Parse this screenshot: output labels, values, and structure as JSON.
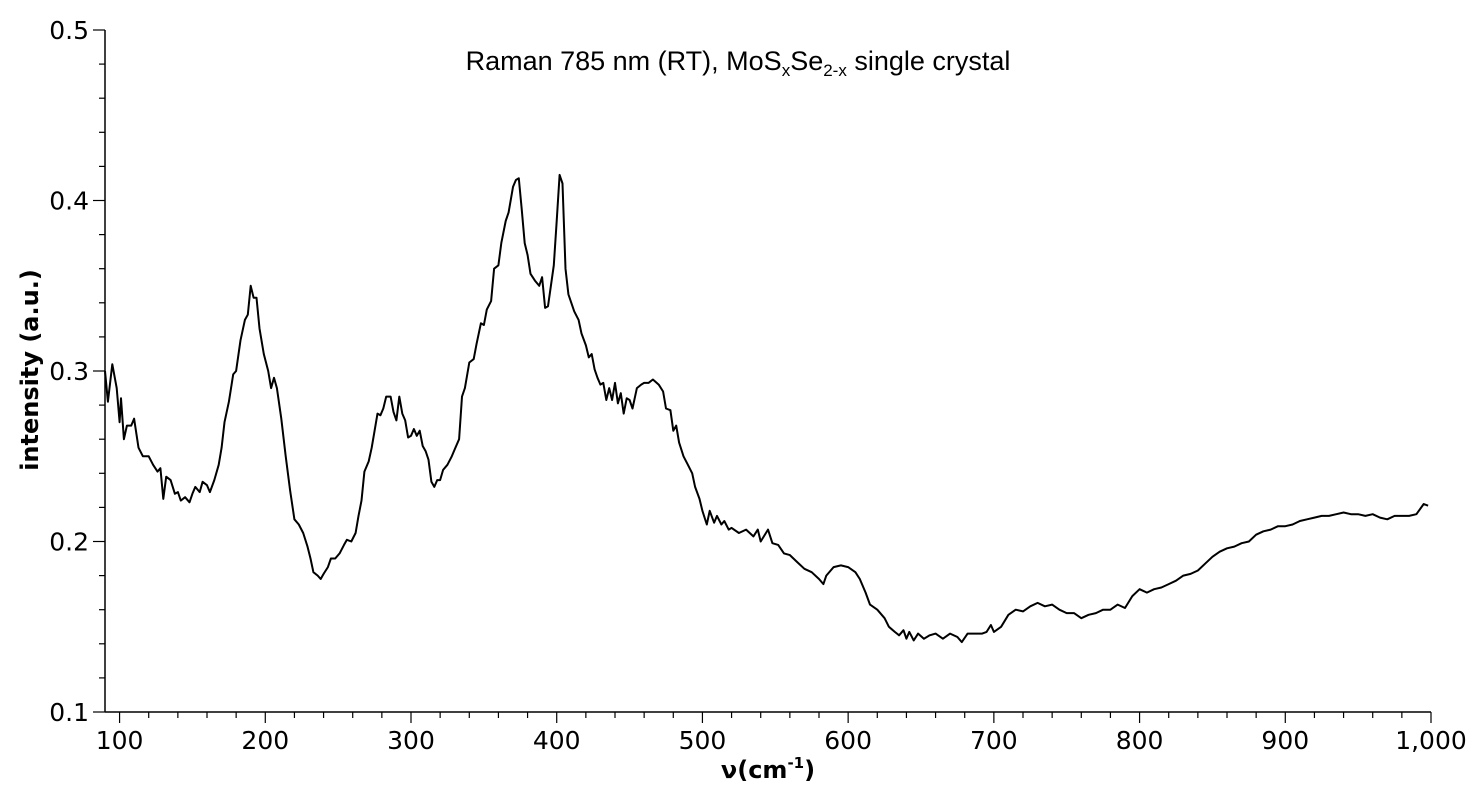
{
  "chart_data": {
    "type": "line",
    "title": "Raman 785 nm (RT), MoS",
    "title_parts": {
      "pre": "Raman 785 nm (RT), MoS",
      "sub1": "x",
      "mid": "Se",
      "sub2": "2-x",
      "post": " single crystal"
    },
    "xlabel": {
      "main": "ν(cm",
      "sup": "-1",
      "close": ")"
    },
    "ylabel": "intensity (a.u.)",
    "xlim": [
      90,
      1000
    ],
    "ylim": [
      0.1,
      0.5
    ],
    "xticks": [
      100,
      200,
      300,
      400,
      500,
      600,
      700,
      800,
      900,
      1000
    ],
    "xtick_labels": [
      "100",
      "200",
      "300",
      "400",
      "500",
      "600",
      "700",
      "800",
      "900",
      "1,000"
    ],
    "yticks": [
      0.1,
      0.2,
      0.3,
      0.4,
      0.5
    ],
    "ytick_labels": [
      "0.1",
      "0.2",
      "0.3",
      "0.4",
      "0.5"
    ],
    "grid": false,
    "line_color": "#000000",
    "series": [
      {
        "x": [
          90,
          92,
          95,
          98,
          100,
          101,
          103,
          105,
          108,
          110,
          113,
          116,
          120,
          123,
          126,
          128,
          130,
          132,
          135,
          138,
          140,
          142,
          145,
          148,
          150,
          152,
          155,
          157,
          160,
          162,
          165,
          168,
          170,
          172,
          175,
          178,
          180,
          183,
          186,
          188,
          190,
          192,
          194,
          196,
          199,
          202,
          204,
          206,
          208,
          211,
          214,
          217,
          220,
          223,
          226,
          229,
          231,
          233,
          236,
          238,
          240,
          243,
          245,
          248,
          251,
          254,
          256,
          259,
          262,
          264,
          266,
          268,
          271,
          273,
          275,
          277,
          279,
          281,
          283,
          286,
          288,
          290,
          292,
          294,
          296,
          298,
          300,
          302,
          304,
          306,
          308,
          310,
          312,
          314,
          316,
          318,
          320,
          322,
          325,
          328,
          330,
          333,
          335,
          337,
          340,
          343,
          345,
          348,
          350,
          352,
          355,
          357,
          360,
          362,
          365,
          367,
          370,
          372,
          374,
          376,
          378,
          380,
          382,
          385,
          388,
          390,
          392,
          394,
          396,
          398,
          400,
          402,
          404,
          406,
          408,
          410,
          412,
          415,
          417,
          420,
          422,
          424,
          426,
          428,
          430,
          432,
          434,
          436,
          438,
          440,
          442,
          444,
          446,
          448,
          450,
          452,
          455,
          458,
          460,
          463,
          466,
          470,
          473,
          475,
          478,
          480,
          482,
          484,
          487,
          490,
          493,
          495,
          498,
          500,
          503,
          505,
          508,
          510,
          513,
          515,
          518,
          520,
          525,
          530,
          535,
          538,
          540,
          545,
          548,
          552,
          556,
          560,
          565,
          570,
          575,
          580,
          583,
          585,
          590,
          595,
          600,
          605,
          608,
          612,
          615,
          620,
          625,
          628,
          632,
          635,
          638,
          640,
          642,
          645,
          648,
          652,
          656,
          660,
          665,
          670,
          675,
          678,
          682,
          687,
          692,
          695,
          698,
          700,
          705,
          710,
          715,
          720,
          725,
          730,
          735,
          740,
          745,
          750,
          755,
          760,
          765,
          770,
          775,
          780,
          785,
          790,
          795,
          800,
          805,
          810,
          815,
          820,
          825,
          830,
          835,
          840,
          845,
          850,
          855,
          860,
          865,
          870,
          875,
          880,
          885,
          890,
          895,
          900,
          905,
          910,
          915,
          920,
          925,
          930,
          935,
          940,
          945,
          950,
          955,
          960,
          965,
          970,
          975,
          980,
          985,
          990,
          995,
          998
        ],
        "y": [
          0.3,
          0.282,
          0.304,
          0.29,
          0.27,
          0.284,
          0.26,
          0.268,
          0.268,
          0.272,
          0.255,
          0.25,
          0.25,
          0.245,
          0.241,
          0.243,
          0.225,
          0.238,
          0.236,
          0.228,
          0.229,
          0.224,
          0.226,
          0.223,
          0.228,
          0.232,
          0.229,
          0.235,
          0.233,
          0.229,
          0.236,
          0.245,
          0.255,
          0.27,
          0.282,
          0.298,
          0.3,
          0.318,
          0.33,
          0.333,
          0.35,
          0.343,
          0.343,
          0.325,
          0.31,
          0.3,
          0.29,
          0.296,
          0.29,
          0.272,
          0.25,
          0.23,
          0.213,
          0.21,
          0.205,
          0.197,
          0.19,
          0.182,
          0.18,
          0.178,
          0.181,
          0.185,
          0.19,
          0.19,
          0.193,
          0.198,
          0.201,
          0.2,
          0.205,
          0.215,
          0.224,
          0.241,
          0.247,
          0.255,
          0.265,
          0.275,
          0.274,
          0.278,
          0.285,
          0.285,
          0.276,
          0.271,
          0.285,
          0.275,
          0.271,
          0.261,
          0.262,
          0.266,
          0.262,
          0.265,
          0.256,
          0.253,
          0.248,
          0.235,
          0.232,
          0.236,
          0.236,
          0.242,
          0.245,
          0.25,
          0.254,
          0.26,
          0.285,
          0.29,
          0.305,
          0.307,
          0.316,
          0.328,
          0.327,
          0.336,
          0.341,
          0.36,
          0.362,
          0.375,
          0.388,
          0.393,
          0.408,
          0.412,
          0.413,
          0.395,
          0.375,
          0.368,
          0.357,
          0.353,
          0.35,
          0.355,
          0.337,
          0.338,
          0.35,
          0.362,
          0.388,
          0.415,
          0.41,
          0.36,
          0.345,
          0.34,
          0.335,
          0.33,
          0.322,
          0.315,
          0.308,
          0.31,
          0.301,
          0.296,
          0.292,
          0.293,
          0.283,
          0.29,
          0.283,
          0.293,
          0.281,
          0.287,
          0.275,
          0.284,
          0.283,
          0.278,
          0.29,
          0.292,
          0.293,
          0.293,
          0.295,
          0.292,
          0.288,
          0.278,
          0.277,
          0.265,
          0.268,
          0.258,
          0.25,
          0.245,
          0.24,
          0.232,
          0.225,
          0.218,
          0.21,
          0.218,
          0.211,
          0.215,
          0.21,
          0.212,
          0.207,
          0.208,
          0.205,
          0.207,
          0.203,
          0.207,
          0.2,
          0.207,
          0.199,
          0.198,
          0.193,
          0.192,
          0.188,
          0.184,
          0.182,
          0.178,
          0.175,
          0.18,
          0.185,
          0.186,
          0.185,
          0.182,
          0.178,
          0.17,
          0.163,
          0.16,
          0.155,
          0.15,
          0.147,
          0.145,
          0.148,
          0.143,
          0.147,
          0.142,
          0.146,
          0.143,
          0.145,
          0.146,
          0.143,
          0.146,
          0.144,
          0.141,
          0.146,
          0.146,
          0.146,
          0.147,
          0.151,
          0.147,
          0.15,
          0.157,
          0.16,
          0.159,
          0.162,
          0.164,
          0.162,
          0.163,
          0.16,
          0.158,
          0.158,
          0.155,
          0.157,
          0.158,
          0.16,
          0.16,
          0.163,
          0.161,
          0.168,
          0.172,
          0.17,
          0.172,
          0.173,
          0.175,
          0.177,
          0.18,
          0.181,
          0.183,
          0.187,
          0.191,
          0.194,
          0.196,
          0.197,
          0.199,
          0.2,
          0.204,
          0.206,
          0.207,
          0.209,
          0.209,
          0.21,
          0.212,
          0.213,
          0.214,
          0.215,
          0.215,
          0.216,
          0.217,
          0.216,
          0.216,
          0.215,
          0.216,
          0.214,
          0.213,
          0.215,
          0.215,
          0.215,
          0.216,
          0.222,
          0.221
        ]
      }
    ]
  }
}
